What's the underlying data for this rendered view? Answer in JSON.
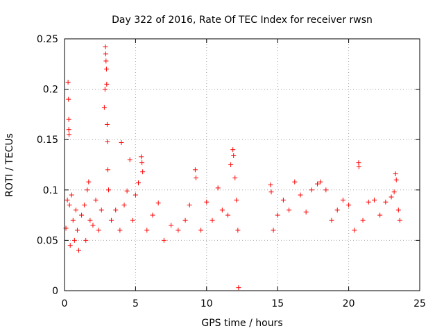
{
  "chart_data": {
    "type": "scatter",
    "title": "Day 322 of 2016, Rate Of TEC Index for receiver rwsn",
    "xlabel": "GPS time / hours",
    "ylabel": "ROTI / TECUs",
    "xlim": [
      0,
      25
    ],
    "ylim": [
      0,
      0.25
    ],
    "x_ticks": [
      "0",
      "5",
      "10",
      "15",
      "20",
      "25"
    ],
    "y_ticks": [
      "0",
      "0.05",
      "0.1",
      "0.15",
      "0.2",
      "0.25"
    ],
    "grid": true,
    "legend": "none",
    "marker": "+",
    "color": "#ff0000",
    "data_gap_hours": [
      12.3,
      14.4
    ],
    "series": [
      {
        "points": [
          [
            0.1,
            0.062
          ],
          [
            0.2,
            0.09
          ],
          [
            0.25,
            0.207
          ],
          [
            0.28,
            0.19
          ],
          [
            0.3,
            0.17
          ],
          [
            0.3,
            0.16
          ],
          [
            0.32,
            0.155
          ],
          [
            0.35,
            0.085
          ],
          [
            0.4,
            0.045
          ],
          [
            0.5,
            0.095
          ],
          [
            0.6,
            0.07
          ],
          [
            0.7,
            0.05
          ],
          [
            0.8,
            0.08
          ],
          [
            0.9,
            0.06
          ],
          [
            1.0,
            0.04
          ],
          [
            1.2,
            0.075
          ],
          [
            1.4,
            0.085
          ],
          [
            1.5,
            0.05
          ],
          [
            1.6,
            0.1
          ],
          [
            1.7,
            0.108
          ],
          [
            1.8,
            0.07
          ],
          [
            2.0,
            0.065
          ],
          [
            2.2,
            0.09
          ],
          [
            2.4,
            0.06
          ],
          [
            2.6,
            0.08
          ],
          [
            2.8,
            0.182
          ],
          [
            2.85,
            0.2
          ],
          [
            2.88,
            0.242
          ],
          [
            2.9,
            0.235
          ],
          [
            2.92,
            0.228
          ],
          [
            2.95,
            0.22
          ],
          [
            2.97,
            0.205
          ],
          [
            3.0,
            0.165
          ],
          [
            3.02,
            0.148
          ],
          [
            3.05,
            0.12
          ],
          [
            3.1,
            0.1
          ],
          [
            3.3,
            0.07
          ],
          [
            3.6,
            0.08
          ],
          [
            3.9,
            0.06
          ],
          [
            4.0,
            0.147
          ],
          [
            4.2,
            0.085
          ],
          [
            4.4,
            0.099
          ],
          [
            4.6,
            0.13
          ],
          [
            4.8,
            0.07
          ],
          [
            5.0,
            0.095
          ],
          [
            5.2,
            0.107
          ],
          [
            5.4,
            0.133
          ],
          [
            5.45,
            0.127
          ],
          [
            5.5,
            0.118
          ],
          [
            5.8,
            0.06
          ],
          [
            6.2,
            0.075
          ],
          [
            6.6,
            0.087
          ],
          [
            7.0,
            0.05
          ],
          [
            7.5,
            0.065
          ],
          [
            8.0,
            0.06
          ],
          [
            8.5,
            0.07
          ],
          [
            8.8,
            0.085
          ],
          [
            9.2,
            0.12
          ],
          [
            9.25,
            0.112
          ],
          [
            9.6,
            0.06
          ],
          [
            10.0,
            0.088
          ],
          [
            10.4,
            0.07
          ],
          [
            10.8,
            0.102
          ],
          [
            11.1,
            0.08
          ],
          [
            11.5,
            0.075
          ],
          [
            11.7,
            0.125
          ],
          [
            11.85,
            0.14
          ],
          [
            11.9,
            0.134
          ],
          [
            12.0,
            0.112
          ],
          [
            12.1,
            0.09
          ],
          [
            12.2,
            0.06
          ],
          [
            12.25,
            0.003
          ],
          [
            14.5,
            0.105
          ],
          [
            14.55,
            0.098
          ],
          [
            14.7,
            0.06
          ],
          [
            15.0,
            0.075
          ],
          [
            15.4,
            0.09
          ],
          [
            15.8,
            0.08
          ],
          [
            16.2,
            0.108
          ],
          [
            16.6,
            0.095
          ],
          [
            17.0,
            0.078
          ],
          [
            17.4,
            0.1
          ],
          [
            17.8,
            0.106
          ],
          [
            18.0,
            0.108
          ],
          [
            18.4,
            0.1
          ],
          [
            18.8,
            0.07
          ],
          [
            19.2,
            0.08
          ],
          [
            19.6,
            0.09
          ],
          [
            20.0,
            0.085
          ],
          [
            20.4,
            0.06
          ],
          [
            20.7,
            0.127
          ],
          [
            20.72,
            0.123
          ],
          [
            21.0,
            0.07
          ],
          [
            21.4,
            0.088
          ],
          [
            21.8,
            0.09
          ],
          [
            22.2,
            0.075
          ],
          [
            22.6,
            0.088
          ],
          [
            23.0,
            0.093
          ],
          [
            23.2,
            0.098
          ],
          [
            23.3,
            0.116
          ],
          [
            23.35,
            0.11
          ],
          [
            23.5,
            0.08
          ],
          [
            23.6,
            0.07
          ]
        ]
      }
    ]
  }
}
